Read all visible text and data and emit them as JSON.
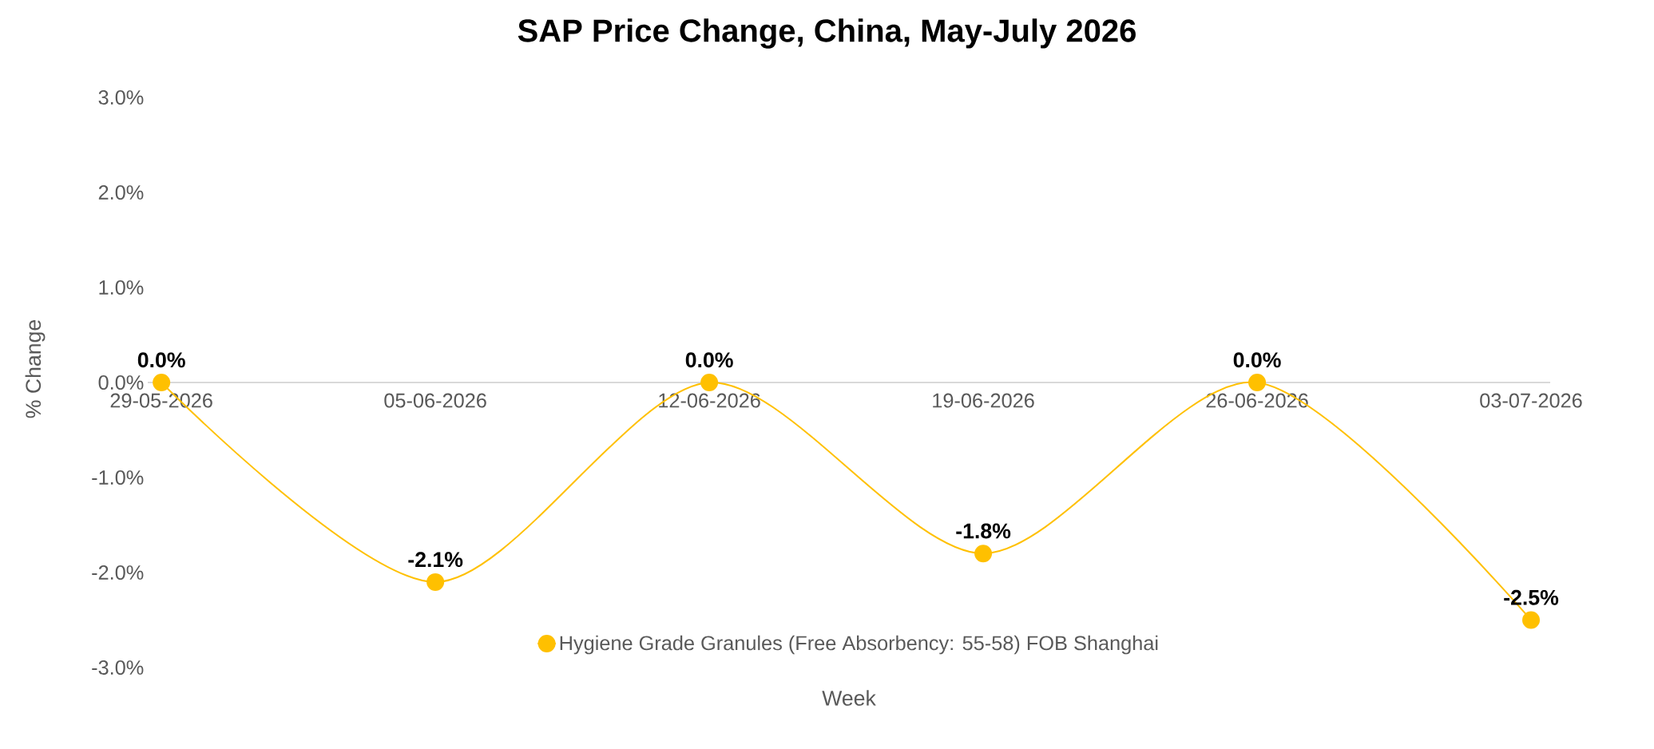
{
  "chart_data": {
    "type": "line",
    "title": "SAP Price Change, China, May-July 2026",
    "xlabel": "Week",
    "ylabel": "% Change",
    "categories": [
      "29-05-2026",
      "05-06-2026",
      "12-06-2026",
      "19-06-2026",
      "26-06-2026",
      "03-07-2026"
    ],
    "series": [
      {
        "name": "Hygiene Grade Granules (Free Absorbency: 55-58) FOB Shanghai",
        "color": "#ffc000",
        "values": [
          0.0,
          -2.1,
          0.0,
          -1.8,
          0.0,
          -2.5
        ],
        "value_labels": [
          "0.0%",
          "-2.1%",
          "0.0%",
          "-1.8%",
          "0.0%",
          "-2.5%"
        ]
      }
    ],
    "ylim": [
      -3,
      3
    ],
    "yticks": [
      {
        "value": -3,
        "label": "-3.0%"
      },
      {
        "value": -2,
        "label": "-2.0%"
      },
      {
        "value": -1,
        "label": "-1.0%"
      },
      {
        "value": 0,
        "label": "0.0%"
      },
      {
        "value": 1,
        "label": "1.0%"
      },
      {
        "value": 2,
        "label": "2.0%"
      },
      {
        "value": 3,
        "label": "3.0%"
      }
    ],
    "grid": false,
    "legend": "bottom",
    "marker": "circle",
    "line_style": "solid"
  }
}
